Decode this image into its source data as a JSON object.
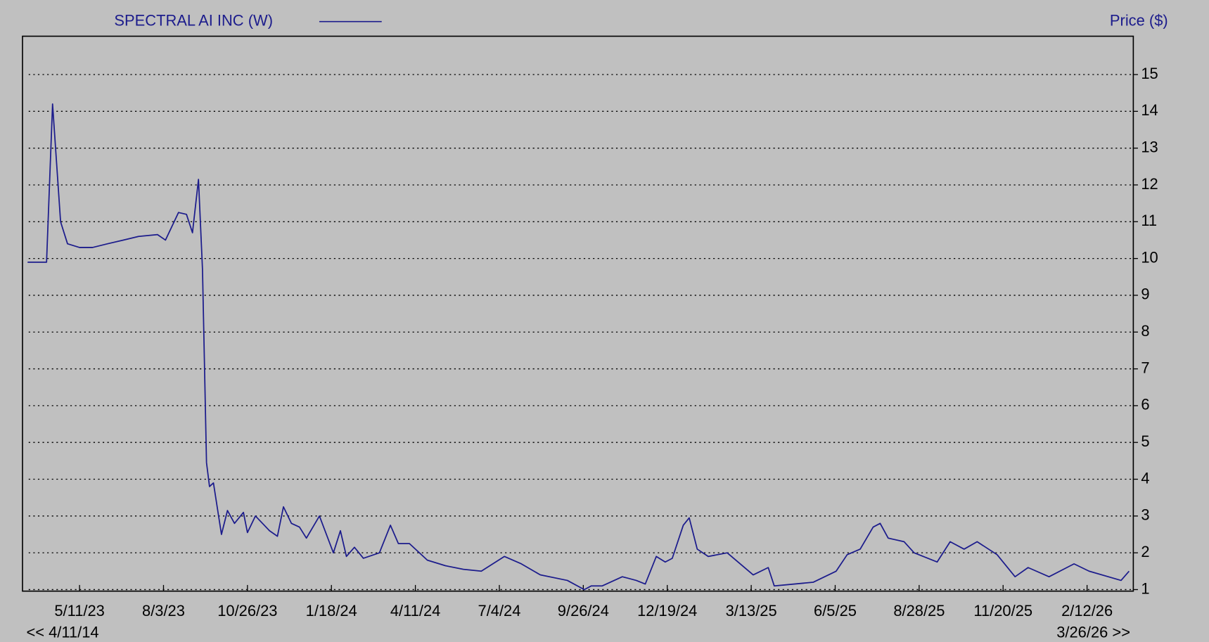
{
  "chart_data": {
    "type": "line",
    "legend": "SPECTRAL AI INC (W)",
    "y_axis_label": "Price ($)",
    "nav_left": "<< 4/11/14",
    "nav_right": "3/26/26 >>",
    "x": [
      "3/20/23",
      "4/8/23",
      "4/14/23",
      "4/22/23",
      "4/29/23",
      "5/11/23",
      "5/24/23",
      "6/8/23",
      "6/24/23",
      "7/9/23",
      "7/28/23",
      "8/5/23",
      "8/18/23",
      "8/26/23",
      "9/1/23",
      "9/7/23",
      "9/11/23",
      "9/15/23",
      "9/18/23",
      "9/22/23",
      "9/30/23",
      "10/6/23",
      "10/13/23",
      "10/22/23",
      "10/26/23",
      "11/3/23",
      "11/17/23",
      "11/25/23",
      "12/1/23",
      "12/9/23",
      "12/17/23",
      "12/24/23",
      "1/6/24",
      "1/20/24",
      "1/27/24",
      "2/2/24",
      "2/10/24",
      "2/19/24",
      "3/6/24",
      "3/17/24",
      "3/25/24",
      "4/5/24",
      "4/23/24",
      "5/11/24",
      "5/29/24",
      "6/16/24",
      "7/9/24",
      "7/26/24",
      "8/14/24",
      "9/10/24",
      "9/27/24",
      "10/4/24",
      "10/15/24",
      "11/4/24",
      "11/18/24",
      "11/27/24",
      "12/8/24",
      "12/17/24",
      "12/24/24",
      "1/4/25",
      "1/10/25",
      "1/18/25",
      "1/29/25",
      "2/17/25",
      "3/15/25",
      "3/30/25",
      "4/5/25",
      "5/14/25",
      "6/6/25",
      "6/17/25",
      "6/30/25",
      "7/13/25",
      "7/20/25",
      "7/28/25",
      "8/13/25",
      "8/23/25",
      "9/15/25",
      "9/28/25",
      "10/12/25",
      "10/25/25",
      "11/14/25",
      "12/2/25",
      "12/15/25",
      "1/5/26",
      "1/30/26",
      "2/14/26",
      "3/18/26",
      "3/26/26"
    ],
    "series": [
      {
        "name": "SPECTRAL AI INC (W)",
        "color": "#1c1c8c",
        "values": [
          9.9,
          9.9,
          14.2,
          11.0,
          10.4,
          10.3,
          10.3,
          10.4,
          10.5,
          10.6,
          10.65,
          10.5,
          11.25,
          11.2,
          10.7,
          12.15,
          9.7,
          4.45,
          3.8,
          3.9,
          2.5,
          3.15,
          2.8,
          3.1,
          2.55,
          3.0,
          2.6,
          2.45,
          3.25,
          2.8,
          2.7,
          2.4,
          3.0,
          2.0,
          2.6,
          1.9,
          2.15,
          1.85,
          2.0,
          2.75,
          2.25,
          2.25,
          1.8,
          1.65,
          1.55,
          1.5,
          1.9,
          1.7,
          1.4,
          1.25,
          1.0,
          1.1,
          1.1,
          1.35,
          1.25,
          1.15,
          1.9,
          1.75,
          1.85,
          2.75,
          2.95,
          2.1,
          1.9,
          2.0,
          1.4,
          1.6,
          1.1,
          1.2,
          1.5,
          1.95,
          2.1,
          2.7,
          2.8,
          2.4,
          2.3,
          2.0,
          1.75,
          2.3,
          2.1,
          2.3,
          1.95,
          1.35,
          1.6,
          1.35,
          1.7,
          1.5,
          1.25,
          1.5
        ]
      }
    ],
    "xticks": [
      "5/11/23",
      "8/3/23",
      "10/26/23",
      "1/18/24",
      "4/11/24",
      "7/4/24",
      "9/26/24",
      "12/19/24",
      "3/13/25",
      "6/5/25",
      "8/28/25",
      "11/20/25",
      "2/12/26"
    ],
    "ylim": [
      1,
      16
    ],
    "yticks": [
      1,
      2,
      3,
      4,
      5,
      6,
      7,
      8,
      9,
      10,
      11,
      12,
      13,
      14,
      15
    ],
    "grid": true
  }
}
